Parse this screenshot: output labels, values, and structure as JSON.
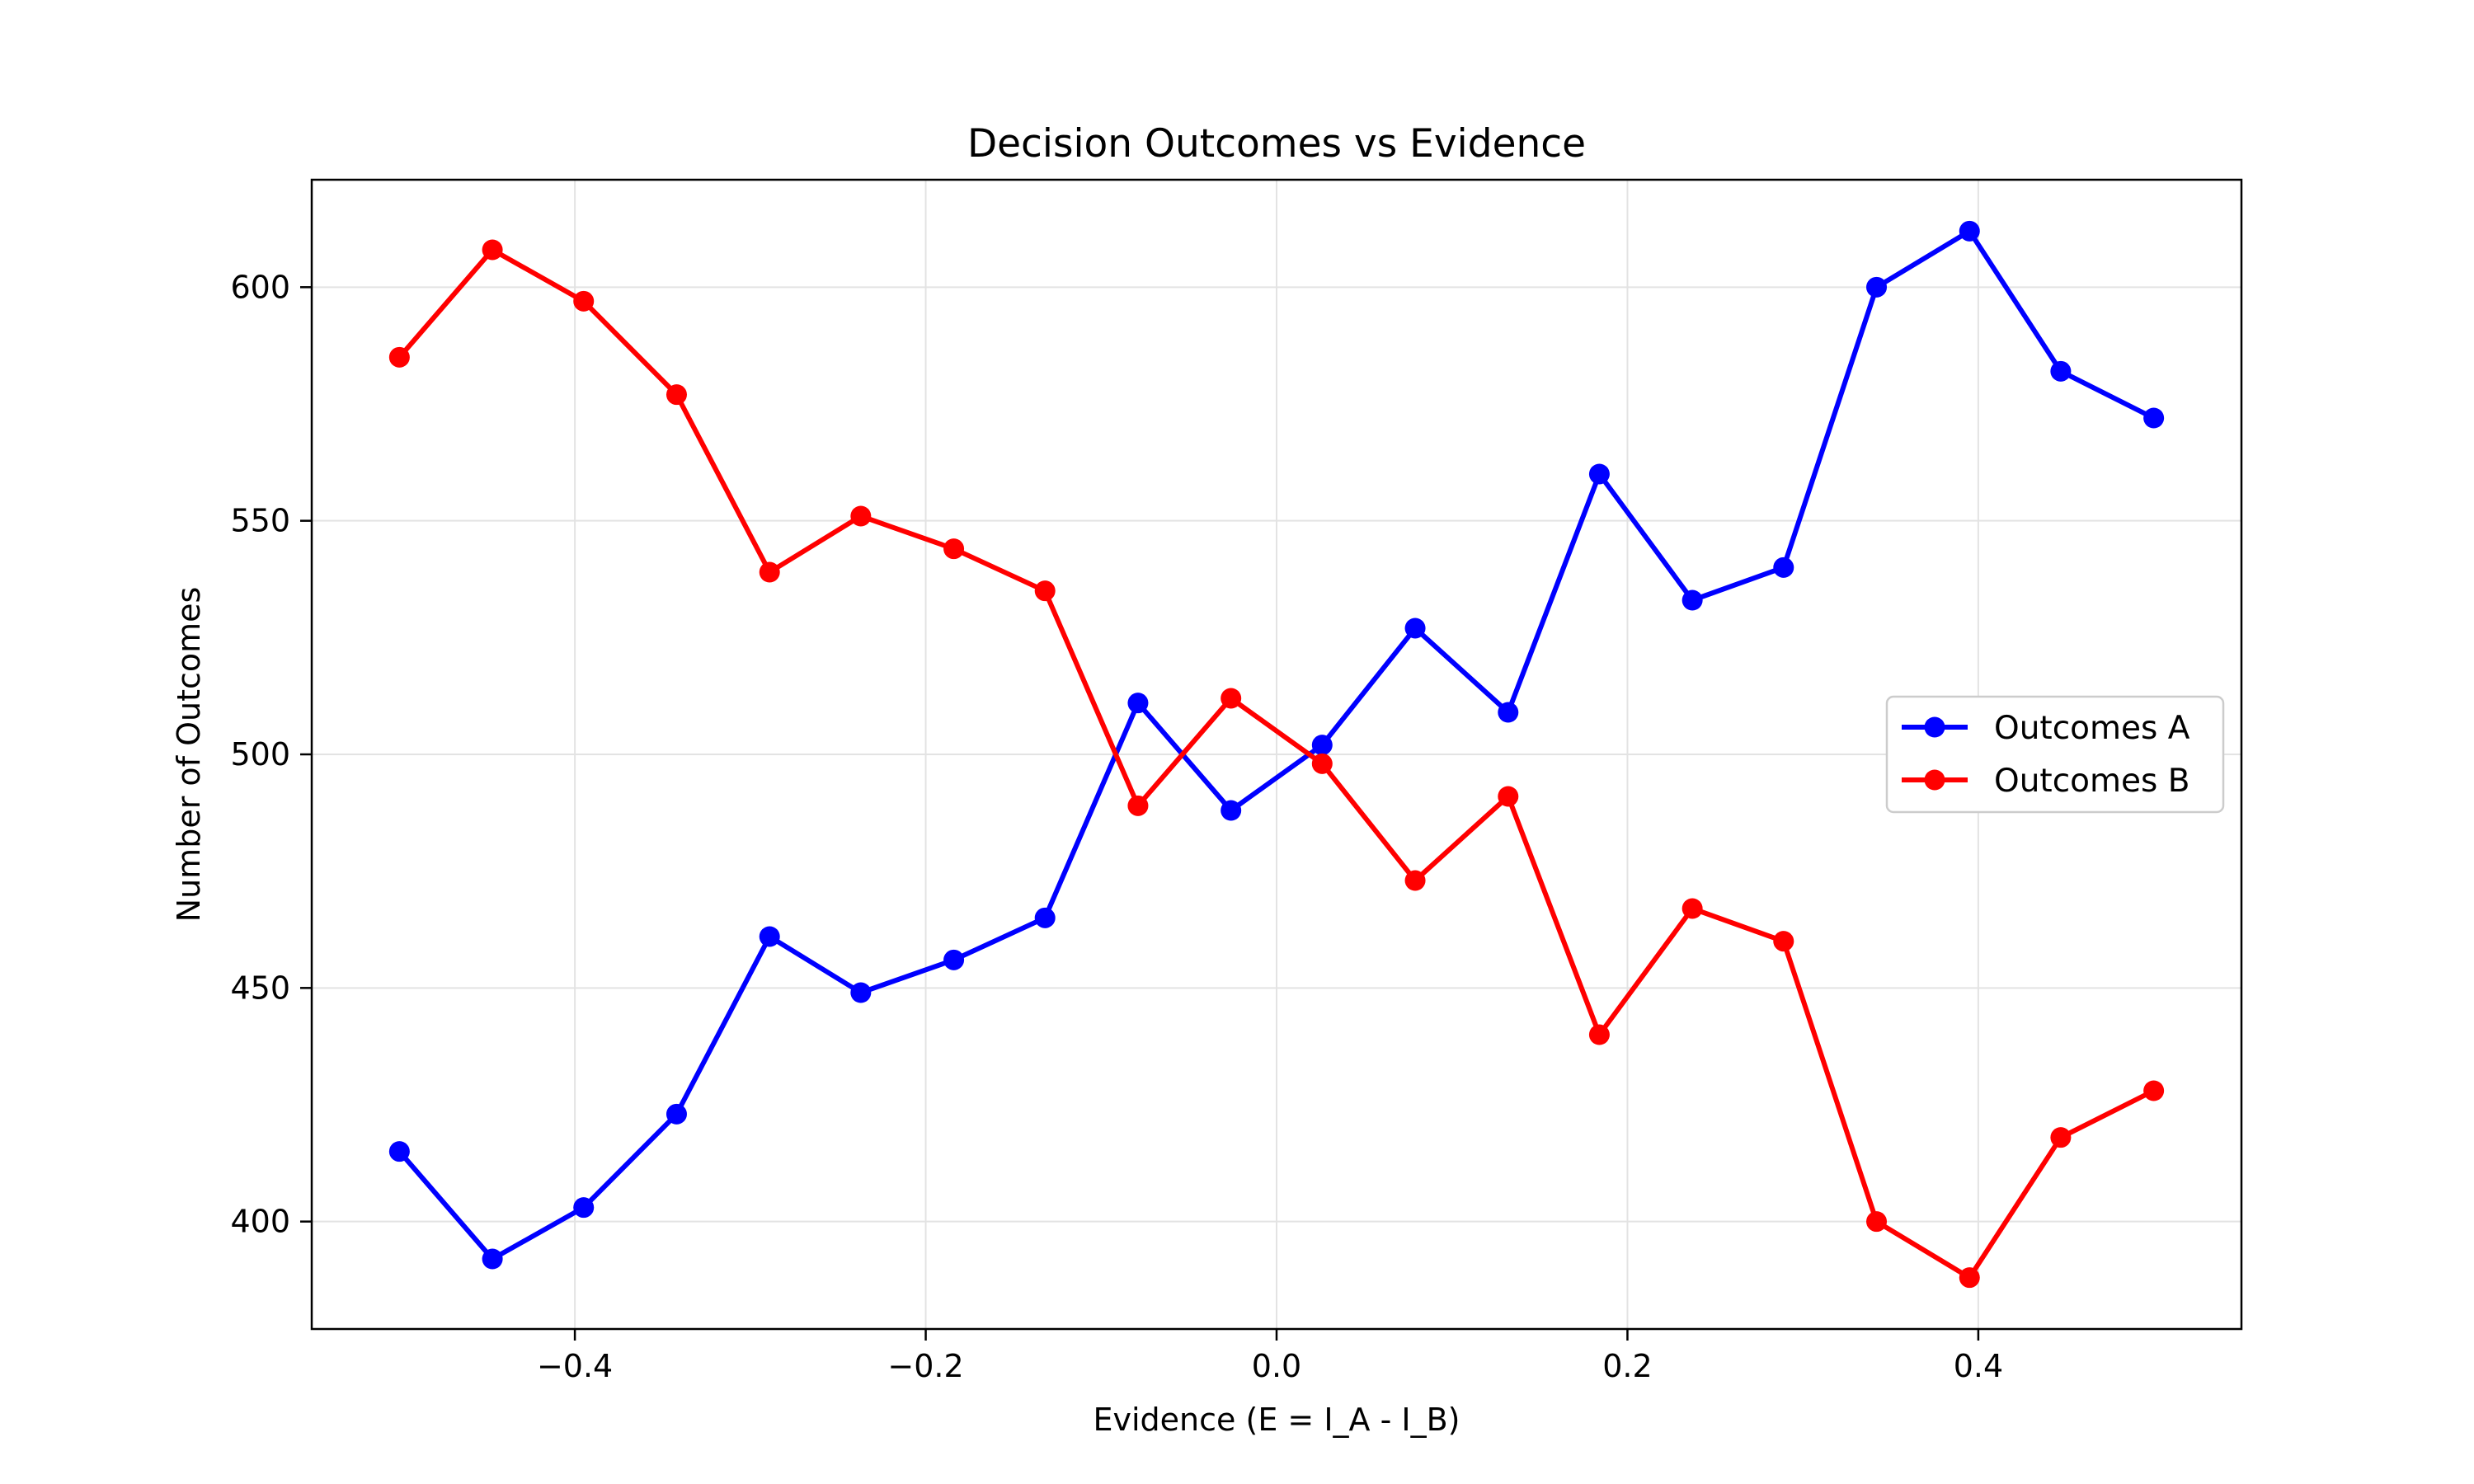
{
  "chart_data": {
    "type": "line",
    "title": "Decision Outcomes vs Evidence",
    "xlabel": "Evidence (E = I_A - I_B)",
    "ylabel": "Number of Outcomes",
    "xlim": [
      -0.55,
      0.55
    ],
    "ylim": [
      377,
      623
    ],
    "xticks": [
      -0.4,
      -0.2,
      0.0,
      0.2,
      0.4
    ],
    "xtick_labels": [
      "−0.4",
      "−0.2",
      "0.0",
      "0.2",
      "0.4"
    ],
    "yticks": [
      400,
      450,
      500,
      550,
      600
    ],
    "ytick_labels": [
      "400",
      "450",
      "500",
      "550",
      "600"
    ],
    "grid": true,
    "legend_position": "center-right",
    "x": [
      -0.5,
      -0.447,
      -0.395,
      -0.342,
      -0.289,
      -0.237,
      -0.184,
      -0.132,
      -0.079,
      -0.026,
      0.026,
      0.079,
      0.132,
      0.184,
      0.237,
      0.289,
      0.342,
      0.395,
      0.447,
      0.5
    ],
    "series": [
      {
        "name": "Outcomes A",
        "color": "#0000ff",
        "marker": "circle",
        "values": [
          415,
          392,
          403,
          423,
          461,
          449,
          456,
          465,
          511,
          488,
          502,
          527,
          509,
          560,
          533,
          540,
          600,
          612,
          582,
          572
        ]
      },
      {
        "name": "Outcomes B",
        "color": "#ff0000",
        "marker": "circle",
        "values": [
          585,
          608,
          597,
          577,
          539,
          551,
          544,
          535,
          489,
          512,
          498,
          473,
          491,
          440,
          467,
          460,
          400,
          388,
          418,
          428
        ]
      }
    ]
  }
}
